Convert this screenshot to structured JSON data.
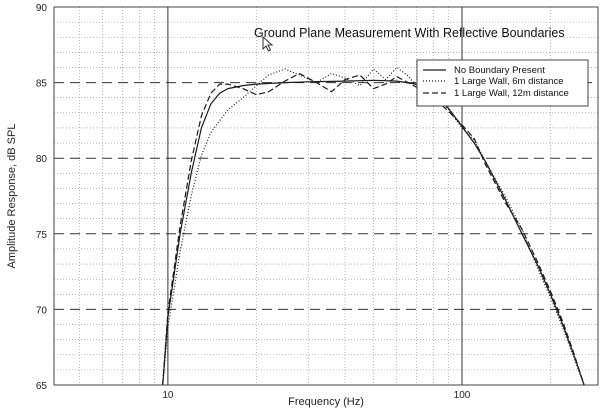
{
  "chart_data": {
    "type": "line",
    "title": "Ground Plane Measurement With Reflective Boundaries",
    "xlabel": "Frequency (Hz)",
    "ylabel": "Amplitude Response, dB SPL",
    "xscale": "log",
    "xlim": [
      4.1,
      290
    ],
    "ylim": [
      65,
      90
    ],
    "grid": true,
    "legend_position": "top-right",
    "x_tick_labels": [
      {
        "value": 10,
        "label": "10"
      },
      {
        "value": 100,
        "label": "100"
      }
    ],
    "y_ticks": [
      65,
      70,
      75,
      80,
      85,
      90
    ],
    "series": [
      {
        "name": "No Boundary Present",
        "style": "solid",
        "x": [
          9.6,
          10,
          11,
          12,
          13,
          14,
          15,
          16,
          18,
          20,
          25,
          30,
          40,
          50,
          60,
          70,
          80,
          90,
          100,
          110,
          120,
          140,
          160,
          180,
          200,
          220,
          240,
          260
        ],
        "y": [
          65,
          69.5,
          75,
          79,
          82,
          83.6,
          84.3,
          84.6,
          84.8,
          84.9,
          85,
          85.05,
          85.1,
          85.15,
          85.1,
          84.9,
          84.3,
          83.3,
          82.1,
          81,
          79.8,
          77.3,
          75,
          73,
          71,
          69,
          67,
          65
        ]
      },
      {
        "name": "1 Large Wall, 6m distance",
        "style": "dotted",
        "x": [
          9.6,
          10,
          11,
          12,
          13,
          14,
          16,
          18,
          20,
          22,
          25,
          28,
          32,
          36,
          40,
          45,
          50,
          55,
          60,
          65,
          70,
          80,
          90,
          100,
          110,
          120,
          140,
          160,
          180,
          200,
          220,
          240,
          260
        ],
        "y": [
          65,
          68.8,
          73.8,
          77.5,
          80.2,
          81.7,
          83.2,
          84,
          84.8,
          85.5,
          85.9,
          85.5,
          85,
          85.6,
          85.3,
          84.8,
          85.9,
          85.2,
          86,
          85.5,
          84.8,
          84.2,
          83.2,
          82,
          81.2,
          79.8,
          77.5,
          75.3,
          72.8,
          70.8,
          68.8,
          66.8,
          65
        ]
      },
      {
        "name": "1 Large Wall, 12m distance",
        "style": "dashed",
        "x": [
          9.6,
          10,
          11,
          12,
          13,
          14,
          15,
          16,
          18,
          20,
          22,
          25,
          28,
          32,
          36,
          40,
          45,
          50,
          55,
          60,
          70,
          80,
          90,
          100,
          110,
          120,
          140,
          160,
          180,
          200,
          220,
          240,
          260
        ],
        "y": [
          65,
          69.8,
          75.5,
          79.8,
          82.8,
          84.3,
          84.9,
          84.9,
          84.6,
          84.2,
          84.4,
          85.1,
          85.6,
          85,
          84.4,
          85.2,
          85.5,
          84.6,
          84.9,
          85.4,
          84.7,
          84,
          83.1,
          82.2,
          81.3,
          79.6,
          77.1,
          75.3,
          73.2,
          71.2,
          69.2,
          67.1,
          65
        ]
      }
    ]
  }
}
